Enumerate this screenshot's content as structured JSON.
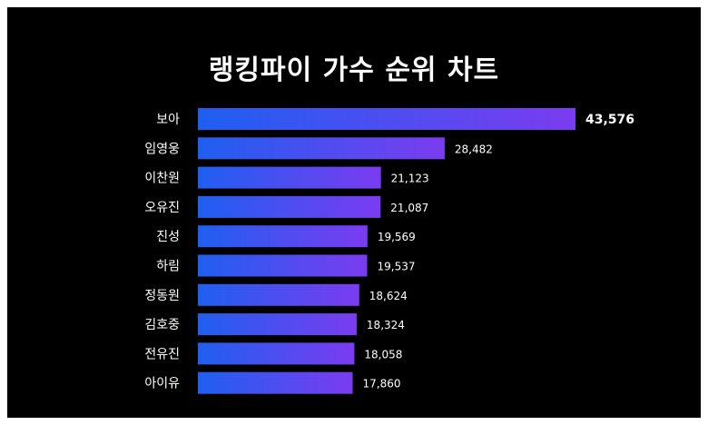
{
  "chart_data": {
    "type": "bar",
    "orientation": "horizontal",
    "title": "랭킹파이 가수 순위 차트",
    "categories": [
      "보아",
      "임영웅",
      "이찬원",
      "오유진",
      "진성",
      "하림",
      "정동원",
      "김호중",
      "전유진",
      "아이유"
    ],
    "values": [
      43576,
      28482,
      21123,
      21087,
      19569,
      19537,
      18624,
      18324,
      18058,
      17860
    ],
    "value_labels": [
      "43,576",
      "28,482",
      "21,123",
      "21,087",
      "19,569",
      "19,537",
      "18,624",
      "18,324",
      "18,058",
      "17,860"
    ],
    "xlim": [
      0,
      43576
    ],
    "grid": false,
    "legend": "none",
    "colors": {
      "background": "#000000",
      "bar_start": "#1f5ff0",
      "bar_end": "#7b3cf0",
      "text": "#ffffff"
    }
  }
}
